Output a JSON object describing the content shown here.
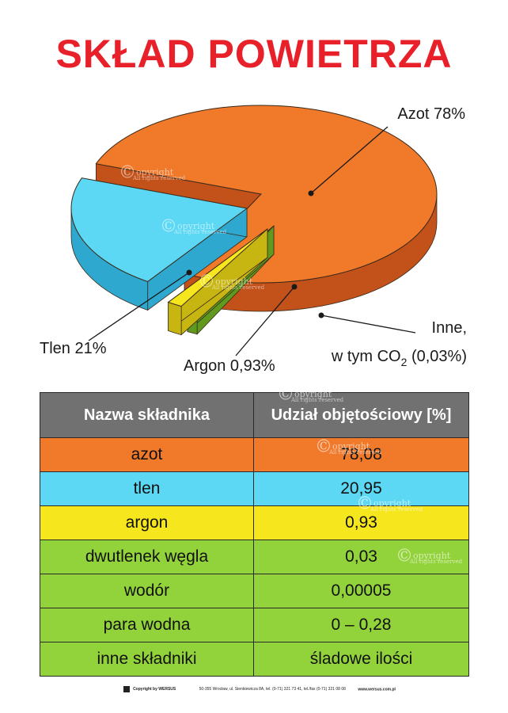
{
  "title": "SKŁAD POWIETRZA",
  "watermark": {
    "symbol": "©",
    "text": "opyright",
    "sub": "All rights reserved"
  },
  "chart_data": [
    {
      "type": "pie",
      "title": "SKŁAD POWIETRZA",
      "slices": [
        {
          "label": "Azot 78%",
          "value": 78,
          "color": "#f0792a",
          "side": "#c2511a"
        },
        {
          "label": "Tlen 21%",
          "value": 21,
          "color": "#5cd8f4",
          "side": "#2ea8cf"
        },
        {
          "label": "Argon 0,93%",
          "value": 0.93,
          "color": "#f6e61e",
          "side": "#c7b512"
        },
        {
          "label": "Inne, w tym CO2 (0,03%)",
          "value": 0.03,
          "color": "#8ed13a",
          "side": "#5f9a1e"
        }
      ],
      "labels": {
        "azot": "Azot 78%",
        "tlen": "Tlen 21%",
        "argon": "Argon 0,93%",
        "inne_line1": "Inne,",
        "inne_line2_pre": "w tym CO",
        "inne_line2_sub": "2",
        "inne_line2_post": " (0,03%)"
      }
    },
    {
      "type": "table",
      "columns": [
        "Nazwa składnika",
        "Udział objętościowy [%]"
      ],
      "rows": [
        {
          "name": "azot",
          "value": "78,08",
          "color": "#f0792a"
        },
        {
          "name": "tlen",
          "value": "20,95",
          "color": "#5cd8f4"
        },
        {
          "name": "argon",
          "value": "0,93",
          "color": "#f6e61e"
        },
        {
          "name": "dwutlenek węgla",
          "value": "0,03",
          "color": "#92d23a"
        },
        {
          "name": "wodór",
          "value": "0,00005",
          "color": "#92d23a"
        },
        {
          "name": "para wodna",
          "value": "0 – 0,28",
          "color": "#92d23a"
        },
        {
          "name": "inne składniki",
          "value": "śladowe ilości",
          "color": "#92d23a"
        }
      ]
    }
  ],
  "footer": {
    "copyright": "Copyright by WERSUS",
    "address": "50-355 Wrocław, ul. Sienkiewicza 8A, tel. (0-71) 321 73 41, tel./fax (0-71) 321 08 08",
    "website": "www.wersus.com.pl"
  }
}
